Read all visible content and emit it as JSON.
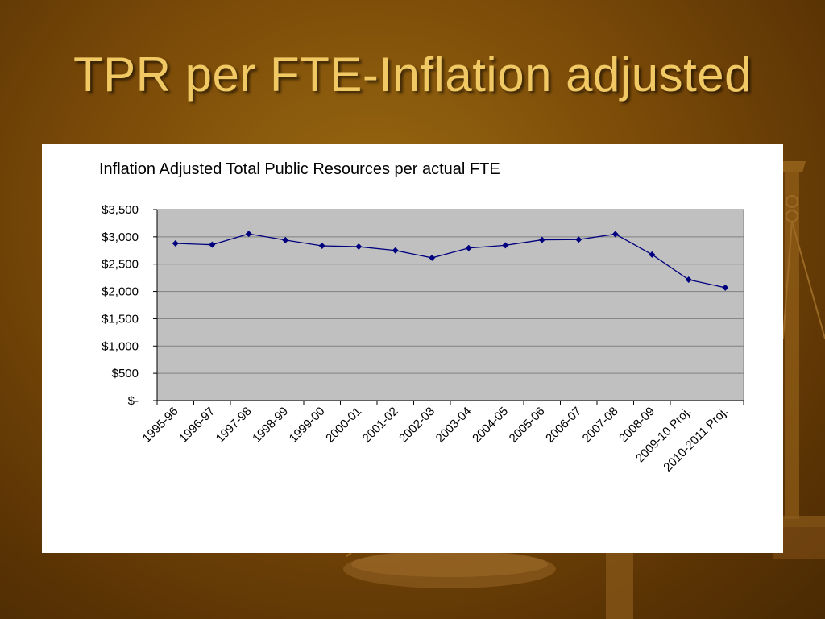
{
  "slide": {
    "title": "TPR per FTE-Inflation adjusted"
  },
  "colors": {
    "background": "#7a4a08",
    "title": "#f0c864",
    "plot_area": "#c0c0c0",
    "series": "#00007f",
    "gridline": "#808080"
  },
  "chart_data": {
    "type": "line",
    "title": "Inflation Adjusted Total Public Resources per actual FTE",
    "xlabel": "",
    "ylabel": "",
    "categories": [
      "1995-96",
      "1996-97",
      "1997-98",
      "1998-99",
      "1999-00",
      "2000-01",
      "2001-02",
      "2002-03",
      "2003-04",
      "2004-05",
      "2005-06",
      "2006-07",
      "2007-08",
      "2008-09",
      "2009-10 Proj.",
      "2010-2011 Proj."
    ],
    "series": [
      {
        "values": [
          2880,
          2855,
          3055,
          2940,
          2835,
          2820,
          2750,
          2615,
          2795,
          2845,
          2945,
          2950,
          3050,
          2675,
          2215,
          2070
        ]
      }
    ],
    "ylim": [
      0,
      3500
    ],
    "yticks": [
      3500,
      3000,
      2500,
      2000,
      1500,
      1000,
      500,
      0
    ],
    "ytick_labels": [
      "$3,500",
      "$3,000",
      "$2,500",
      "$2,000",
      "$1,500",
      "$1,000",
      "$500",
      "$-"
    ],
    "grid": true,
    "legend": "none",
    "marker": "diamond"
  }
}
